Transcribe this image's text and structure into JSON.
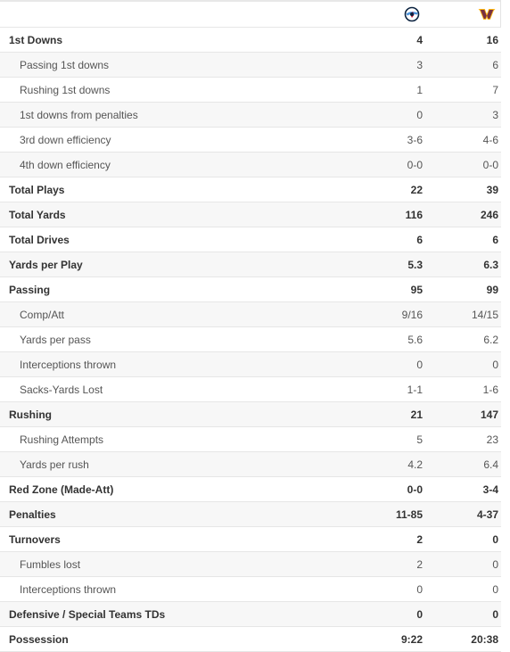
{
  "teams": {
    "team_a_logo": "titans-logo-icon",
    "team_b_logo": "commanders-logo-icon",
    "team_a_color": "#0c2340",
    "team_a_accent": "#4b92db",
    "team_b_color": "#773141",
    "team_b_accent": "#ffb612"
  },
  "rows": [
    {
      "label": "1st Downs",
      "a": "4",
      "b": "16",
      "bold": true
    },
    {
      "label": "Passing 1st downs",
      "a": "3",
      "b": "6",
      "bold": false
    },
    {
      "label": "Rushing 1st downs",
      "a": "1",
      "b": "7",
      "bold": false
    },
    {
      "label": "1st downs from penalties",
      "a": "0",
      "b": "3",
      "bold": false
    },
    {
      "label": "3rd down efficiency",
      "a": "3-6",
      "b": "4-6",
      "bold": false
    },
    {
      "label": "4th down efficiency",
      "a": "0-0",
      "b": "0-0",
      "bold": false
    },
    {
      "label": "Total Plays",
      "a": "22",
      "b": "39",
      "bold": true
    },
    {
      "label": "Total Yards",
      "a": "116",
      "b": "246",
      "bold": true
    },
    {
      "label": "Total Drives",
      "a": "6",
      "b": "6",
      "bold": true
    },
    {
      "label": "Yards per Play",
      "a": "5.3",
      "b": "6.3",
      "bold": true
    },
    {
      "label": "Passing",
      "a": "95",
      "b": "99",
      "bold": true
    },
    {
      "label": "Comp/Att",
      "a": "9/16",
      "b": "14/15",
      "bold": false
    },
    {
      "label": "Yards per pass",
      "a": "5.6",
      "b": "6.2",
      "bold": false
    },
    {
      "label": "Interceptions thrown",
      "a": "0",
      "b": "0",
      "bold": false
    },
    {
      "label": "Sacks-Yards Lost",
      "a": "1-1",
      "b": "1-6",
      "bold": false
    },
    {
      "label": "Rushing",
      "a": "21",
      "b": "147",
      "bold": true
    },
    {
      "label": "Rushing Attempts",
      "a": "5",
      "b": "23",
      "bold": false
    },
    {
      "label": "Yards per rush",
      "a": "4.2",
      "b": "6.4",
      "bold": false
    },
    {
      "label": "Red Zone (Made-Att)",
      "a": "0-0",
      "b": "3-4",
      "bold": true
    },
    {
      "label": "Penalties",
      "a": "11-85",
      "b": "4-37",
      "bold": true
    },
    {
      "label": "Turnovers",
      "a": "2",
      "b": "0",
      "bold": true
    },
    {
      "label": "Fumbles lost",
      "a": "2",
      "b": "0",
      "bold": false
    },
    {
      "label": "Interceptions thrown",
      "a": "0",
      "b": "0",
      "bold": false
    },
    {
      "label": "Defensive / Special Teams TDs",
      "a": "0",
      "b": "0",
      "bold": true
    },
    {
      "label": "Possession",
      "a": "9:22",
      "b": "20:38",
      "bold": true
    }
  ]
}
